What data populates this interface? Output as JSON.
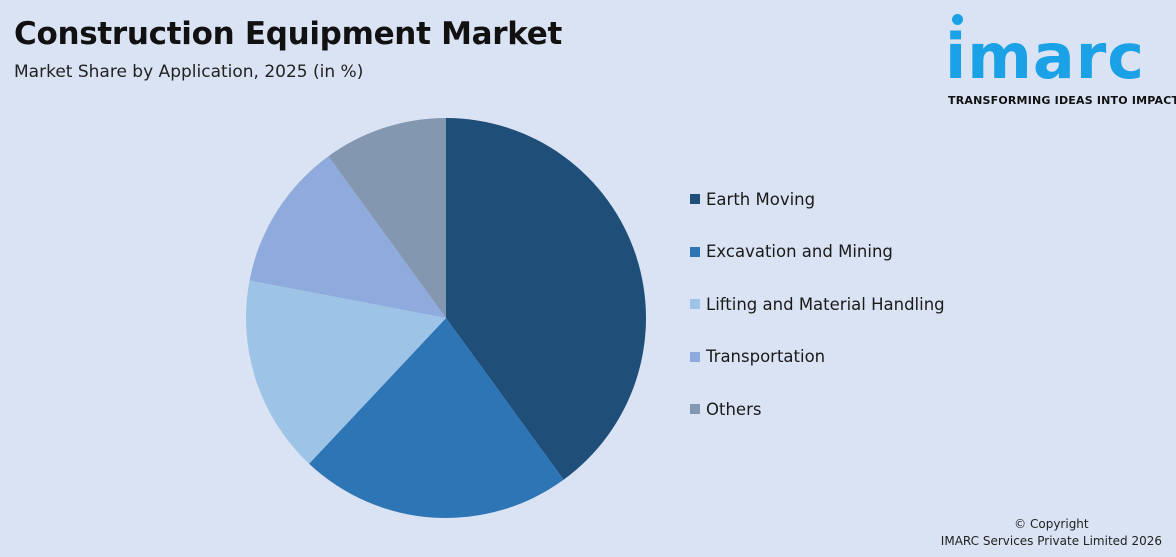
{
  "header": {
    "title": "Construction Equipment Market",
    "subtitle": "Market Share by Application, 2025 (in %)"
  },
  "logo": {
    "wordmark": "imarc",
    "tagline": "TRANSFORMING IDEAS INTO IMPACT",
    "color": "#1ba1e6"
  },
  "legend": {
    "items": [
      {
        "label": "Earth Moving",
        "color": "#1f4e79"
      },
      {
        "label": "Excavation and Mining",
        "color": "#2e75b6"
      },
      {
        "label": "Lifting and Material Handling",
        "color": "#9dc3e6"
      },
      {
        "label": "Transportation",
        "color": "#8faadc"
      },
      {
        "label": "Others",
        "color": "#8497b0"
      }
    ]
  },
  "footer": {
    "copyright_line1": "© Copyright",
    "copyright_line2": "IMARC Services Private Limited 2026"
  },
  "chart_data": {
    "type": "pie",
    "title": "Construction Equipment Market",
    "subtitle": "Market Share by Application, 2025 (in %)",
    "categories": [
      "Earth Moving",
      "Excavation and Mining",
      "Lifting and Material Handling",
      "Transportation",
      "Others"
    ],
    "values": [
      40,
      22,
      16,
      12,
      10
    ],
    "colors": [
      "#1f4e79",
      "#2e75b6",
      "#9dc3e6",
      "#8faadc",
      "#8497b0"
    ],
    "start_angle_deg": 0,
    "direction": "clockwise",
    "legend_position": "right",
    "data_labels": false
  }
}
